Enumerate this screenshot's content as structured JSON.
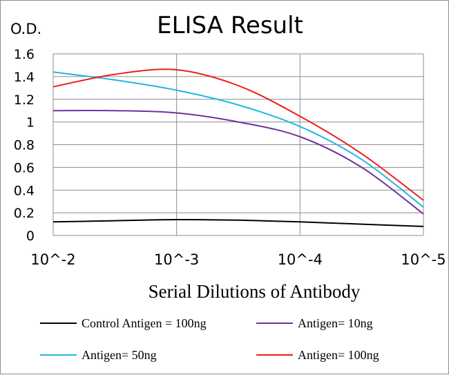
{
  "chart_data": {
    "type": "line",
    "title": "ELISA Result",
    "ylabel": "O.D.",
    "xlabel": "Serial Dilutions of Antibody",
    "categories": [
      "10^-2",
      "10^-3",
      "10^-4",
      "10^-5"
    ],
    "x": [
      -2,
      -2.5,
      -3,
      -3.5,
      -4,
      -4.5,
      -5
    ],
    "ylim": [
      0,
      1.6
    ],
    "yticks": [
      0,
      0.2,
      0.4,
      0.6,
      0.8,
      1,
      1.2,
      1.4,
      1.6
    ],
    "ytick_labels": [
      "0",
      "0.2",
      "0.4",
      "0.6",
      "0.8",
      "1",
      "1.2",
      "1.4",
      "1.6"
    ],
    "grid": true,
    "legend_position": "bottom",
    "series": [
      {
        "name": "Control Antigen = 100ng",
        "color": "#000000",
        "values": [
          0.12,
          0.13,
          0.14,
          0.135,
          0.12,
          0.1,
          0.08
        ]
      },
      {
        "name": "Antigen= 10ng",
        "color": "#7030a0",
        "values": [
          1.1,
          1.1,
          1.08,
          1.0,
          0.87,
          0.6,
          0.19
        ]
      },
      {
        "name": "Antigen= 50ng",
        "color": "#1fb8e0",
        "values": [
          1.44,
          1.37,
          1.28,
          1.15,
          0.96,
          0.67,
          0.25
        ]
      },
      {
        "name": "Antigen= 100ng",
        "color": "#ee1c1c",
        "values": [
          1.31,
          1.42,
          1.46,
          1.32,
          1.05,
          0.72,
          0.31
        ]
      }
    ]
  }
}
